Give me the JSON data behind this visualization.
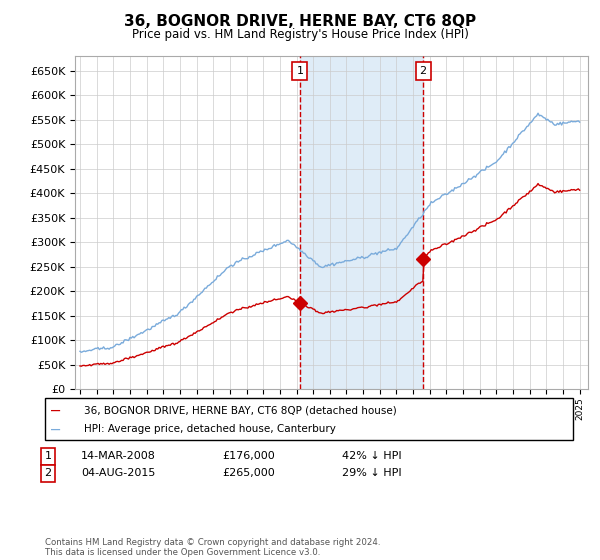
{
  "title": "36, BOGNOR DRIVE, HERNE BAY, CT6 8QP",
  "subtitle": "Price paid vs. HM Land Registry's House Price Index (HPI)",
  "ylim": [
    0,
    680000
  ],
  "yticks": [
    0,
    50000,
    100000,
    150000,
    200000,
    250000,
    300000,
    350000,
    400000,
    450000,
    500000,
    550000,
    600000,
    650000
  ],
  "hpi_color": "#7aabdb",
  "price_color": "#cc0000",
  "vline_color": "#cc0000",
  "shade_color": "#d8e8f5",
  "transaction1_date": 2008.2,
  "transaction1_price": 176000,
  "transaction1_label": "1",
  "transaction2_date": 2015.6,
  "transaction2_price": 265000,
  "transaction2_label": "2",
  "legend_line1": "36, BOGNOR DRIVE, HERNE BAY, CT6 8QP (detached house)",
  "legend_line2": "HPI: Average price, detached house, Canterbury",
  "table_row1": [
    "1",
    "14-MAR-2008",
    "£176,000",
    "42% ↓ HPI"
  ],
  "table_row2": [
    "2",
    "04-AUG-2015",
    "£265,000",
    "29% ↓ HPI"
  ],
  "footer": "Contains HM Land Registry data © Crown copyright and database right 2024.\nThis data is licensed under the Open Government Licence v3.0.",
  "background_color": "#ffffff",
  "grid_color": "#cccccc"
}
